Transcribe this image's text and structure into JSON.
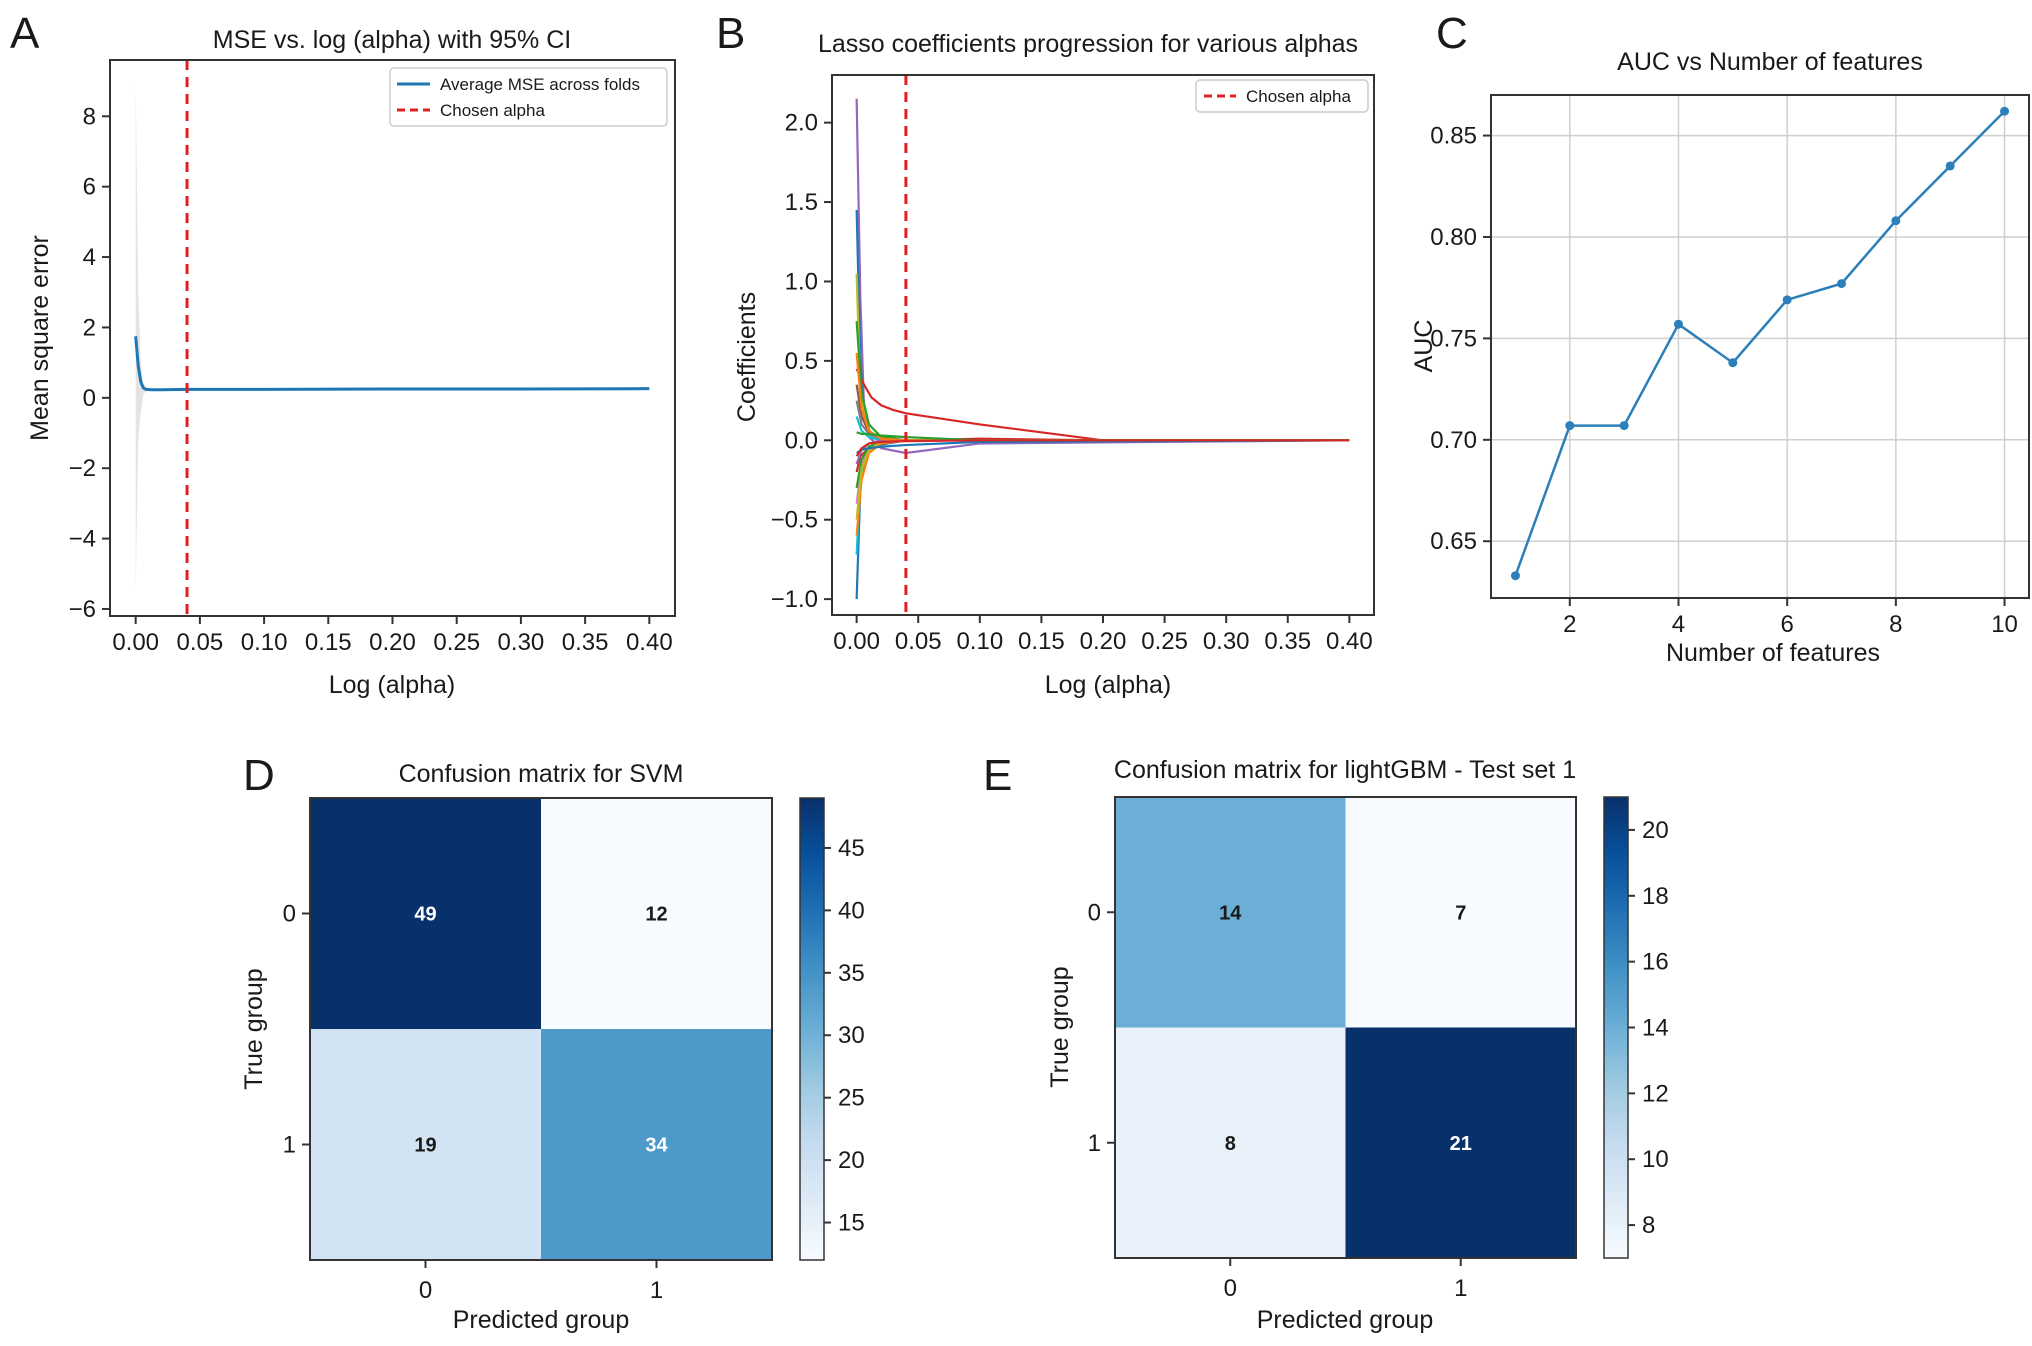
{
  "figure": {
    "panels": [
      {
        "letter": "A"
      },
      {
        "letter": "B"
      },
      {
        "letter": "C"
      },
      {
        "letter": "D"
      },
      {
        "letter": "E"
      }
    ]
  },
  "chart_data": [
    {
      "panel": "A",
      "type": "line",
      "title": "MSE vs. log (alpha) with 95% CI",
      "xlabel": "Log (alpha)",
      "ylabel": "Mean square error",
      "xlim": [
        -0.02,
        0.42
      ],
      "ylim": [
        -6.2,
        9.6
      ],
      "xticks": [
        0.0,
        0.05,
        0.1,
        0.15,
        0.2,
        0.25,
        0.3,
        0.35,
        0.4
      ],
      "xtick_labels": [
        "0.00",
        "0.05",
        "0.10",
        "0.15",
        "0.20",
        "0.25",
        "0.30",
        "0.35",
        "0.40"
      ],
      "yticks": [
        -6,
        -4,
        -2,
        0,
        2,
        4,
        6,
        8
      ],
      "ytick_labels": [
        "−6",
        "−4",
        "−2",
        "0",
        "2",
        "4",
        "6",
        "8"
      ],
      "series": [
        {
          "name": "Average MSE across folds",
          "color": "#1f77b4",
          "x": [
            0.0,
            0.002,
            0.004,
            0.006,
            0.008,
            0.012,
            0.02,
            0.04,
            0.1,
            0.2,
            0.3,
            0.4
          ],
          "y": [
            1.75,
            0.9,
            0.45,
            0.28,
            0.24,
            0.23,
            0.23,
            0.24,
            0.24,
            0.25,
            0.25,
            0.26
          ]
        }
      ],
      "ci_band": {
        "color": "#d9d9d9",
        "x": [
          0.0,
          0.002,
          0.004,
          0.006,
          0.008,
          0.012
        ],
        "upper": [
          9.0,
          3.0,
          1.0,
          0.4,
          0.3,
          0.25
        ],
        "lower": [
          -5.5,
          -1.2,
          -0.4,
          0.1,
          0.18,
          0.22
        ]
      },
      "vline": {
        "x": 0.04,
        "name": "Chosen alpha",
        "color": "#e02020"
      },
      "legend": {
        "placement": "top-right",
        "entries": [
          "Average MSE across folds",
          "Chosen alpha"
        ]
      }
    },
    {
      "panel": "B",
      "type": "line",
      "title": "Lasso coefficients progression for various alphas",
      "xlabel": "Log (alpha)",
      "ylabel": "Coefficients",
      "xlim": [
        -0.02,
        0.42
      ],
      "ylim": [
        -1.1,
        2.3
      ],
      "xticks": [
        0.0,
        0.05,
        0.1,
        0.15,
        0.2,
        0.25,
        0.3,
        0.35,
        0.4
      ],
      "xtick_labels": [
        "0.00",
        "0.05",
        "0.10",
        "0.15",
        "0.20",
        "0.25",
        "0.30",
        "0.35",
        "0.40"
      ],
      "yticks": [
        -1.0,
        -0.5,
        0.0,
        0.5,
        1.0,
        1.5,
        2.0
      ],
      "ytick_labels": [
        "−1.0",
        "−0.5",
        "0.0",
        "0.5",
        "1.0",
        "1.5",
        "2.0"
      ],
      "x_end": 0.4,
      "series": [
        {
          "color": "#9467bd",
          "x": [
            0.0,
            0.003,
            0.006,
            0.01,
            0.02,
            0.04,
            0.1,
            0.4
          ],
          "y": [
            2.15,
            0.9,
            0.2,
            0.02,
            -0.05,
            -0.08,
            -0.02,
            0.0
          ]
        },
        {
          "color": "#1f77b4",
          "x": [
            0.0,
            0.003,
            0.006,
            0.01,
            0.04
          ],
          "y": [
            -1.0,
            -0.3,
            -0.1,
            -0.04,
            0.0
          ]
        },
        {
          "color": "#1f77b4",
          "x": [
            0.0,
            0.003,
            0.006,
            0.012,
            0.04
          ],
          "y": [
            1.45,
            0.5,
            0.15,
            0.03,
            0.0
          ]
        },
        {
          "color": "#d62728",
          "x": [
            0.0,
            0.006,
            0.012,
            0.02,
            0.03,
            0.04,
            0.1,
            0.2,
            0.4
          ],
          "y": [
            0.45,
            0.35,
            0.27,
            0.22,
            0.19,
            0.17,
            0.1,
            0.0,
            0.0
          ]
        },
        {
          "color": "#d62728",
          "x": [
            0.0,
            0.003,
            0.01,
            0.02,
            0.04,
            0.1,
            0.2,
            0.4
          ],
          "y": [
            -0.2,
            -0.1,
            -0.05,
            -0.02,
            0.0,
            0.01,
            0.0,
            0.0
          ]
        },
        {
          "color": "#17becf",
          "x": [
            0.0,
            0.003,
            0.008,
            0.015,
            0.04
          ],
          "y": [
            -0.72,
            -0.25,
            -0.08,
            -0.02,
            0.0
          ]
        },
        {
          "color": "#bcbd22",
          "x": [
            0.0,
            0.003,
            0.008,
            0.015,
            0.04
          ],
          "y": [
            1.05,
            0.3,
            0.08,
            0.02,
            0.0
          ]
        },
        {
          "color": "#2ca02c",
          "x": [
            0.0,
            0.004,
            0.01,
            0.02,
            0.04
          ],
          "y": [
            0.75,
            0.3,
            0.1,
            0.02,
            0.0
          ]
        },
        {
          "color": "#ff7f0e",
          "x": [
            0.0,
            0.004,
            0.01,
            0.02,
            0.04
          ],
          "y": [
            -0.6,
            -0.25,
            -0.08,
            -0.02,
            0.0
          ]
        },
        {
          "color": "#8c564b",
          "x": [
            0.0,
            0.004,
            0.01,
            0.02,
            0.04
          ],
          "y": [
            0.35,
            0.15,
            0.05,
            0.01,
            0.0
          ]
        },
        {
          "color": "#e377c2",
          "x": [
            0.0,
            0.004,
            0.01,
            0.02,
            0.04
          ],
          "y": [
            -0.4,
            -0.15,
            -0.05,
            -0.01,
            0.0
          ]
        },
        {
          "color": "#7f7f7f",
          "x": [
            0.0,
            0.004,
            0.01,
            0.02,
            0.04
          ],
          "y": [
            0.25,
            0.1,
            0.04,
            0.01,
            0.0
          ]
        },
        {
          "color": "#2ca02c",
          "x": [
            0.0,
            0.004,
            0.01,
            0.02,
            0.04
          ],
          "y": [
            -0.3,
            -0.12,
            -0.04,
            -0.01,
            0.0
          ]
        },
        {
          "color": "#17becf",
          "x": [
            0.0,
            0.004,
            0.01,
            0.02,
            0.04
          ],
          "y": [
            0.15,
            0.06,
            0.02,
            0.0,
            0.0
          ]
        },
        {
          "color": "#9467bd",
          "x": [
            0.0,
            0.004,
            0.01,
            0.02,
            0.04
          ],
          "y": [
            -0.15,
            -0.06,
            -0.02,
            0.0,
            0.0
          ]
        },
        {
          "color": "#bcbd22",
          "x": [
            0.0,
            0.004,
            0.01,
            0.02,
            0.04
          ],
          "y": [
            -0.5,
            -0.18,
            -0.06,
            -0.01,
            0.0
          ]
        },
        {
          "color": "#ff7f0e",
          "x": [
            0.0,
            0.004,
            0.01,
            0.02,
            0.04
          ],
          "y": [
            0.55,
            0.2,
            0.06,
            0.01,
            0.0
          ]
        },
        {
          "color": "#1f77b4",
          "x": [
            0.0,
            0.004,
            0.01,
            0.02,
            0.04,
            0.1,
            0.4
          ],
          "y": [
            -0.08,
            -0.06,
            -0.05,
            -0.04,
            -0.03,
            -0.01,
            0.0
          ]
        },
        {
          "color": "#2ca02c",
          "x": [
            0.0,
            0.004,
            0.01,
            0.02,
            0.04,
            0.1,
            0.4
          ],
          "y": [
            0.05,
            0.04,
            0.04,
            0.03,
            0.02,
            0.0,
            0.0
          ]
        },
        {
          "color": "#d62728",
          "x": [
            0.0,
            0.004,
            0.01,
            0.02,
            0.04,
            0.1,
            0.4
          ],
          "y": [
            -0.1,
            -0.05,
            -0.02,
            -0.01,
            -0.005,
            0.0,
            0.0
          ]
        }
      ],
      "vline": {
        "x": 0.04,
        "name": "Chosen alpha",
        "color": "#e02020"
      },
      "legend": {
        "placement": "top-right",
        "entries": [
          "Chosen alpha"
        ]
      }
    },
    {
      "panel": "C",
      "type": "line",
      "title": "AUC vs Number of features",
      "xlabel": "Number of features",
      "ylabel": "AUC",
      "xlim": [
        0.55,
        10.45
      ],
      "ylim": [
        0.622,
        0.87
      ],
      "grid": true,
      "xticks": [
        2,
        4,
        6,
        8,
        10
      ],
      "xtick_labels": [
        "2",
        "4",
        "6",
        "8",
        "10"
      ],
      "yticks": [
        0.65,
        0.7,
        0.75,
        0.8,
        0.85
      ],
      "ytick_labels": [
        "0.65",
        "0.70",
        "0.75",
        "0.80",
        "0.85"
      ],
      "series": [
        {
          "name": "AUC",
          "color": "#2c7fb8",
          "x": [
            1,
            2,
            3,
            4,
            5,
            6,
            7,
            8,
            9,
            10
          ],
          "y": [
            0.633,
            0.707,
            0.707,
            0.757,
            0.738,
            0.769,
            0.777,
            0.808,
            0.835,
            0.862
          ]
        }
      ]
    },
    {
      "panel": "D",
      "type": "heatmap",
      "title": "Confusion matrix for SVM",
      "xlabel": "Predicted group",
      "ylabel": "True group",
      "xtick_labels": [
        "0",
        "1"
      ],
      "ytick_labels": [
        "0",
        "1"
      ],
      "matrix": [
        [
          49,
          12
        ],
        [
          19,
          34
        ]
      ],
      "cell_labels": [
        [
          "49",
          "12"
        ],
        [
          "19",
          "34"
        ]
      ],
      "vmin": 12,
      "vmax": 49,
      "colormap": "Blues",
      "colorbar_ticks": [
        15,
        20,
        25,
        30,
        35,
        40,
        45
      ],
      "colorbar_tick_labels": [
        "15",
        "20",
        "25",
        "30",
        "35",
        "40",
        "45"
      ]
    },
    {
      "panel": "E",
      "type": "heatmap",
      "title": "Confusion matrix for lightGBM - Test set 1",
      "xlabel": "Predicted group",
      "ylabel": "True group",
      "xtick_labels": [
        "0",
        "1"
      ],
      "ytick_labels": [
        "0",
        "1"
      ],
      "matrix": [
        [
          14,
          7
        ],
        [
          8,
          21
        ]
      ],
      "cell_labels": [
        [
          "14",
          "7"
        ],
        [
          "8",
          "21"
        ]
      ],
      "vmin": 7,
      "vmax": 21,
      "colormap": "Blues",
      "colorbar_ticks": [
        8,
        10,
        12,
        14,
        16,
        18,
        20
      ],
      "colorbar_tick_labels": [
        "8",
        "10",
        "12",
        "14",
        "16",
        "18",
        "20"
      ]
    }
  ]
}
